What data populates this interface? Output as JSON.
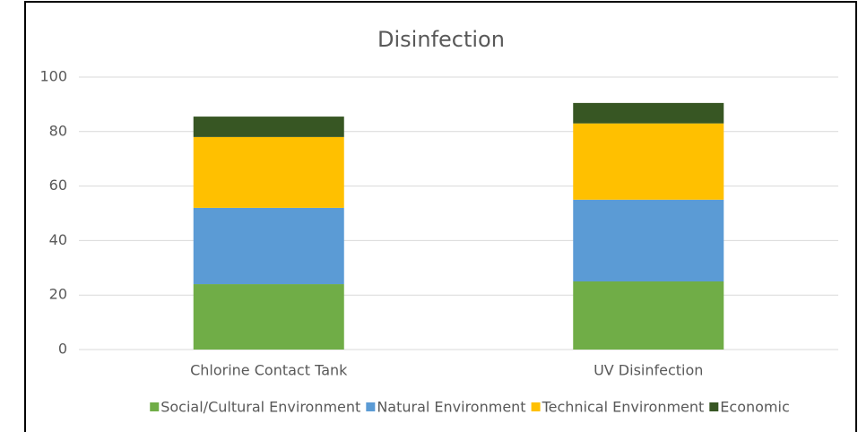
{
  "chart_data": {
    "type": "stacked_bar",
    "title": "Disinfection",
    "categories": [
      "Chlorine Contact Tank",
      "UV Disinfection"
    ],
    "series": [
      {
        "name": "Social/Cultural Environment",
        "color": "#70ad47",
        "values": [
          24,
          25
        ]
      },
      {
        "name": "Natural Environment",
        "color": "#5b9bd5",
        "values": [
          28,
          30
        ]
      },
      {
        "name": "Technical Environment",
        "color": "#ffc000",
        "values": [
          26,
          28
        ]
      },
      {
        "name": "Economic",
        "color": "#375623",
        "values": [
          7.5,
          7.5
        ]
      }
    ],
    "ylim": [
      0,
      100
    ],
    "yticks": [
      0,
      20,
      40,
      60,
      80,
      100
    ],
    "grid": true,
    "legend": "bottom"
  }
}
